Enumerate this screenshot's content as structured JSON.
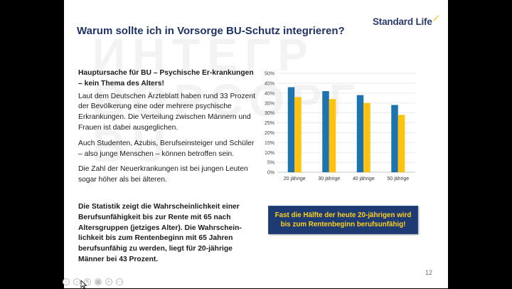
{
  "slide": {
    "title": "Warum sollte ich in Vorsorge BU-Schutz integrieren?",
    "logo_text": "Standard Life",
    "heading_line": "Hauptursache für BU – Psychische Er-krankungen – kein Thema des Alters!",
    "paragraph_1": "Laut dem Deutschen Ärzteblatt haben rund 33 Prozent der Bevölkerung eine oder mehrere psychische Erkrankungen. Die Verteilung zwischen Männern und Frauen ist dabei ausgeglichen.",
    "paragraph_2": "Auch Studenten, Azubis, Berufseinsteiger und Schüler – also junge Menschen – können betroffen sein.",
    "paragraph_3": "Die Zahl der Neuerkrankungen ist bei jungen Leuten sogar höher als bei älteren.",
    "statistic_text": "Die Statistik zeigt die Wahrscheinlichkeit einer Berufsunfähigkeit bis zur Rente mit 65 nach Altersgruppen (jetziges Alter). Die Wahrschein-lichkeit bis zum Rentenbeginn mit 65 Jahren berufsunfähig zu werden, liegt für 20-jährige Männer bei 43 Prozent.",
    "callout_text": "Fast die Hälfte der heute 20-jährigen wird bis zum Rentenbeginn berufsunfähig!",
    "page_number": "12"
  },
  "colors": {
    "title": "#1f3364",
    "bar_blue": "#1f74ad",
    "bar_yellow": "#ffc20e",
    "callout_bg": "#1d3a73",
    "callout_text": "#ffd21e"
  },
  "chart_data": {
    "type": "bar",
    "categories": [
      "20 jährige",
      "30 jährige",
      "40 jährige",
      "50 jährige"
    ],
    "series": [
      {
        "values": [
          43,
          41,
          39,
          34
        ]
      },
      {
        "values": [
          38,
          37,
          35,
          29
        ]
      }
    ],
    "ylim": [
      0,
      50
    ],
    "y_ticks": [
      "0%",
      "5%",
      "10%",
      "15%",
      "20%",
      "25%",
      "30%",
      "35%",
      "40%",
      "45%",
      "50%"
    ],
    "grid": true,
    "legend": "none"
  },
  "toolbar": {
    "icons": [
      "back-icon",
      "forward-icon",
      "pen-icon",
      "slides-icon",
      "zoom-icon",
      "more-icon"
    ]
  }
}
